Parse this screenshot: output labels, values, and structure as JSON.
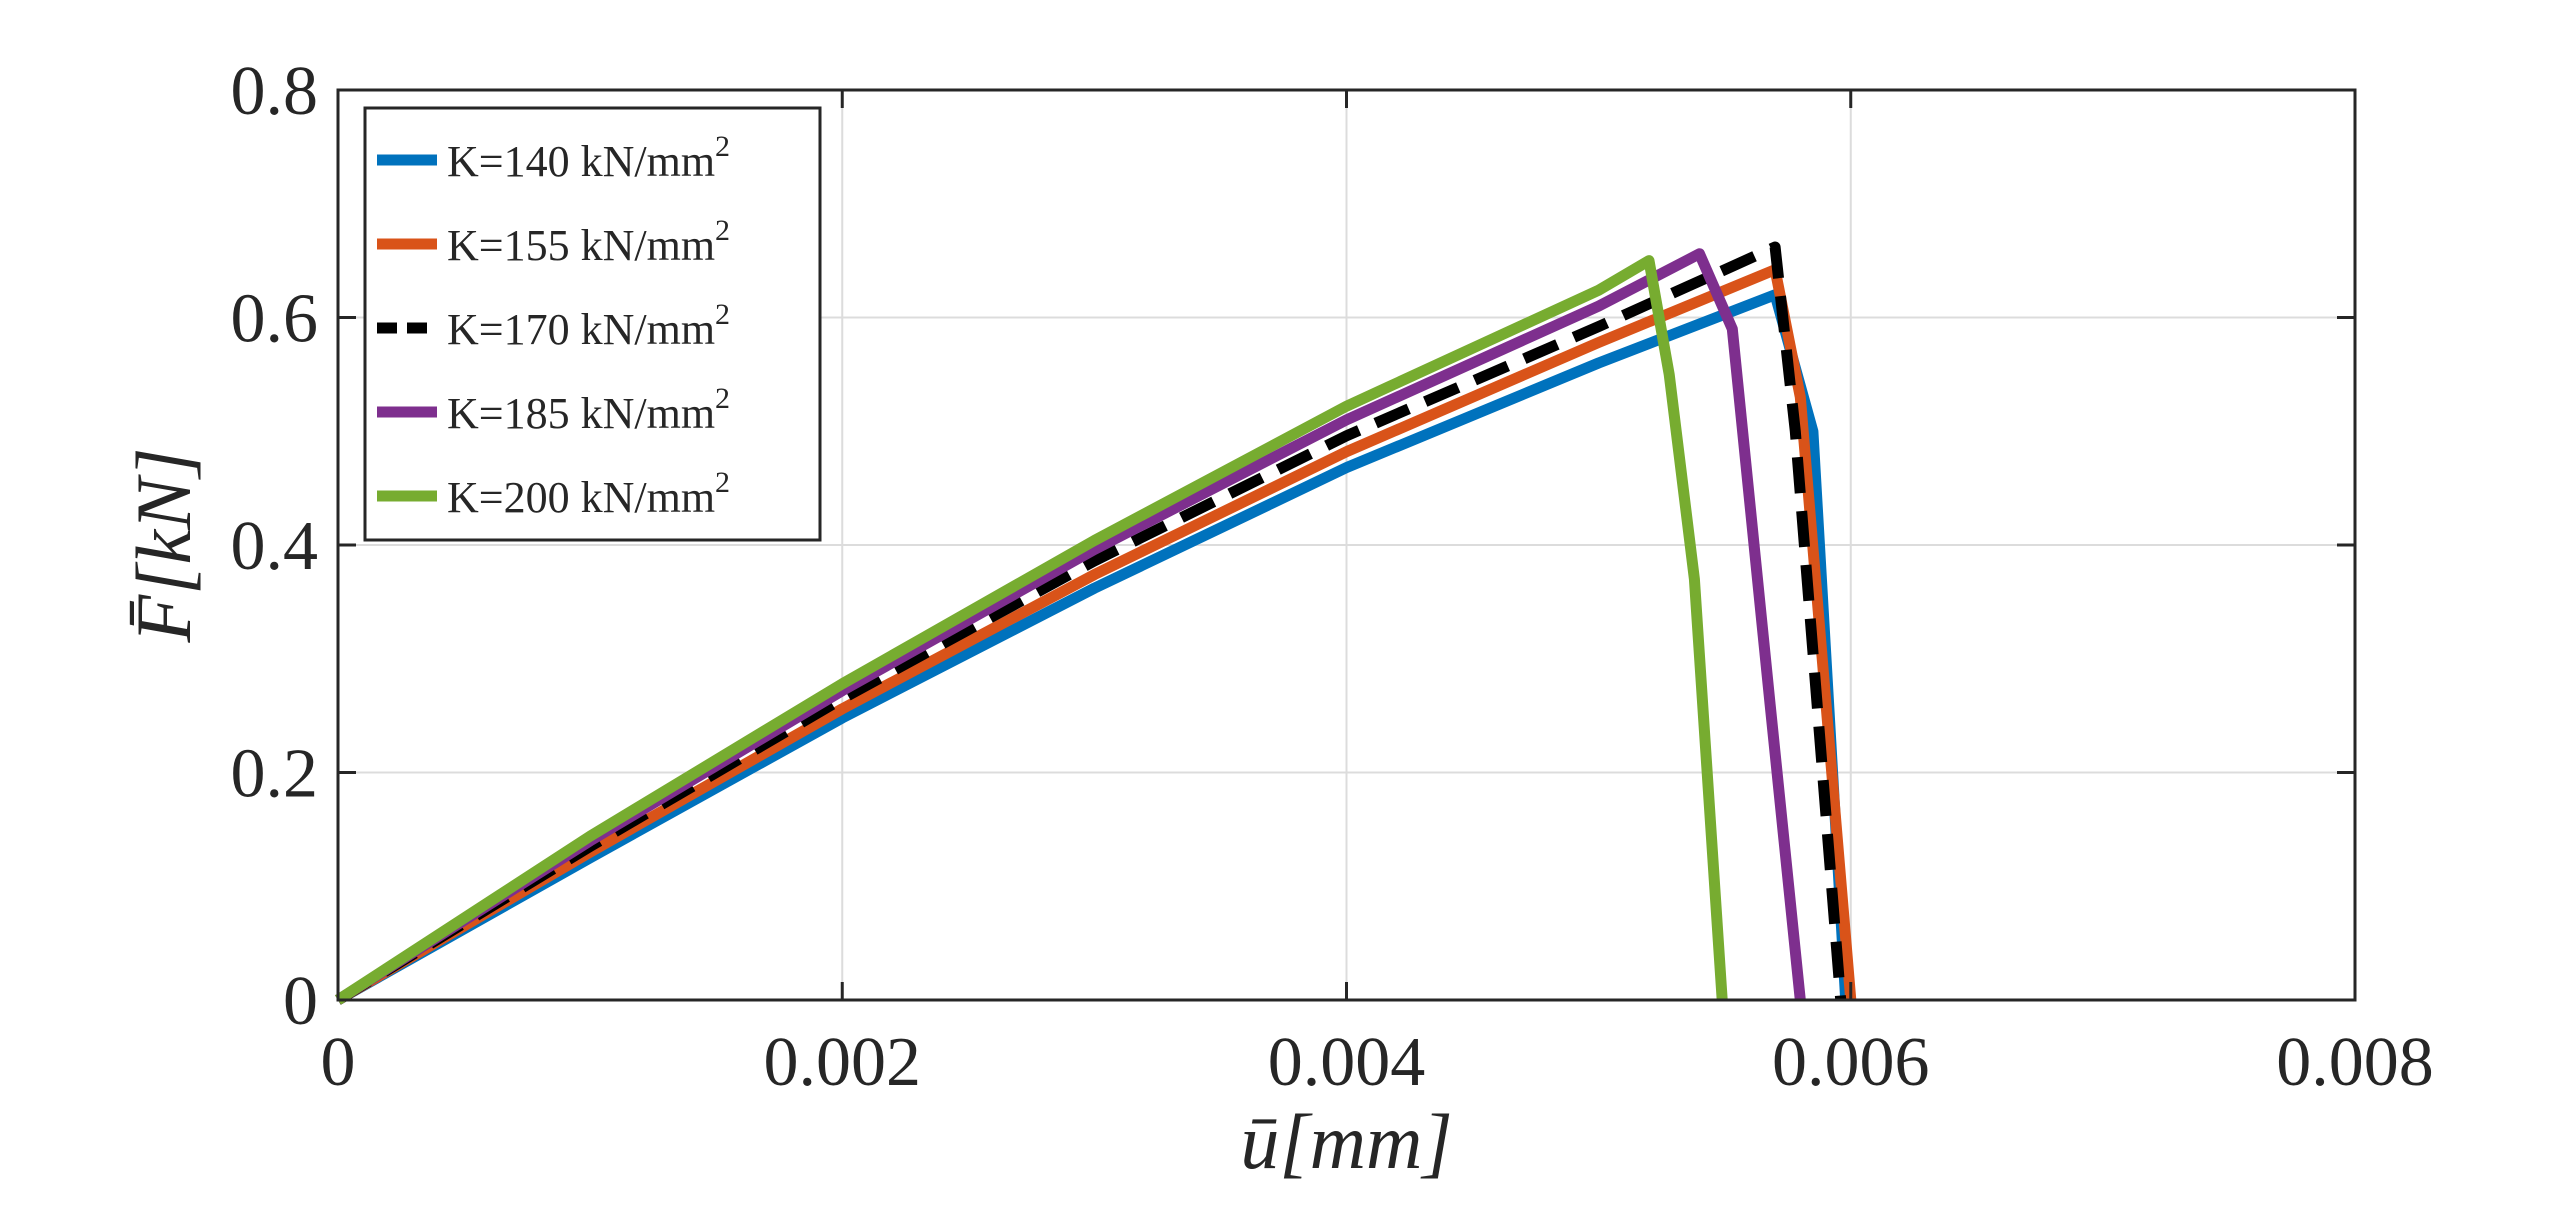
{
  "chart_data": {
    "type": "line",
    "xlabel": "ū[mm]",
    "ylabel": "F̄[kN]",
    "xlim": [
      0,
      0.008
    ],
    "ylim": [
      0,
      0.8
    ],
    "x_ticks": [
      0,
      0.002,
      0.004,
      0.006,
      0.008
    ],
    "x_tick_labels": [
      "0",
      "0.002",
      "0.004",
      "0.006",
      "0.008"
    ],
    "y_ticks": [
      0,
      0.2,
      0.4,
      0.6,
      0.8
    ],
    "y_tick_labels": [
      "0",
      "0.2",
      "0.4",
      "0.6",
      "0.8"
    ],
    "grid": true,
    "legend_position": "top-left",
    "series": [
      {
        "name": "K=140 kN/mm2",
        "label_main": "K=140 kN/mm",
        "label_sup": "2",
        "color": "#0072BD",
        "dash": "solid",
        "x": [
          0,
          0.001,
          0.002,
          0.003,
          0.004,
          0.005,
          0.0057,
          0.00585,
          0.00598
        ],
        "y": [
          0,
          0.125,
          0.248,
          0.362,
          0.468,
          0.56,
          0.62,
          0.5,
          0
        ]
      },
      {
        "name": "K=155 kN/mm2",
        "label_main": "K=155 kN/mm",
        "label_sup": "2",
        "color": "#D95319",
        "dash": "solid",
        "x": [
          0,
          0.001,
          0.002,
          0.003,
          0.004,
          0.005,
          0.0057,
          0.0058,
          0.006
        ],
        "y": [
          0,
          0.13,
          0.256,
          0.374,
          0.482,
          0.578,
          0.642,
          0.53,
          0
        ]
      },
      {
        "name": "K=170 kN/mm2",
        "label_main": "K=170 kN/mm",
        "label_sup": "2",
        "color": "#000000",
        "dash": "dashed",
        "x": [
          0,
          0.001,
          0.002,
          0.003,
          0.004,
          0.005,
          0.0057,
          0.00578,
          0.00596
        ],
        "y": [
          0,
          0.135,
          0.265,
          0.386,
          0.496,
          0.592,
          0.662,
          0.5,
          0
        ]
      },
      {
        "name": "K=185 kN/mm2",
        "label_main": "K=185 kN/mm",
        "label_sup": "2",
        "color": "#7E2F8E",
        "dash": "solid",
        "x": [
          0,
          0.001,
          0.002,
          0.003,
          0.004,
          0.005,
          0.0054,
          0.00553,
          0.00568,
          0.0058
        ],
        "y": [
          0,
          0.14,
          0.272,
          0.396,
          0.51,
          0.61,
          0.656,
          0.59,
          0.26,
          0
        ]
      },
      {
        "name": "K=200 kN/mm2",
        "label_main": "K=200 kN/mm",
        "label_sup": "2",
        "color": "#77AC30",
        "dash": "solid",
        "x": [
          0,
          0.001,
          0.002,
          0.003,
          0.004,
          0.005,
          0.0052,
          0.00528,
          0.00538,
          0.00549
        ],
        "y": [
          0,
          0.144,
          0.278,
          0.404,
          0.522,
          0.624,
          0.65,
          0.55,
          0.37,
          0
        ]
      }
    ]
  }
}
